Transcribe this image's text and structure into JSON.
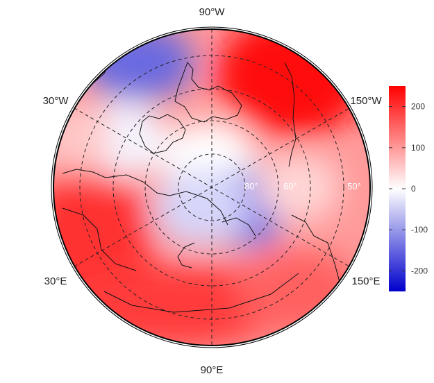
{
  "map": {
    "projection": "north-polar-stereographic",
    "longitude_labels": {
      "top": "90°W",
      "bottom": "90°E",
      "upper_left": "30°W",
      "upper_right": "150°W",
      "lower_left": "30°E",
      "lower_right": "150°E"
    },
    "latitude_labels": [
      "80°",
      "60°",
      "50°"
    ],
    "colors": {
      "negative": "#0000cc",
      "zero": "#ffffff",
      "positive": "#ff0000"
    }
  },
  "colorbar": {
    "min": -250,
    "max": 250,
    "ticks": [
      "200",
      "100",
      "0",
      "-100",
      "-200"
    ],
    "tick_values": [
      200,
      100,
      0,
      -100,
      -200
    ]
  }
}
